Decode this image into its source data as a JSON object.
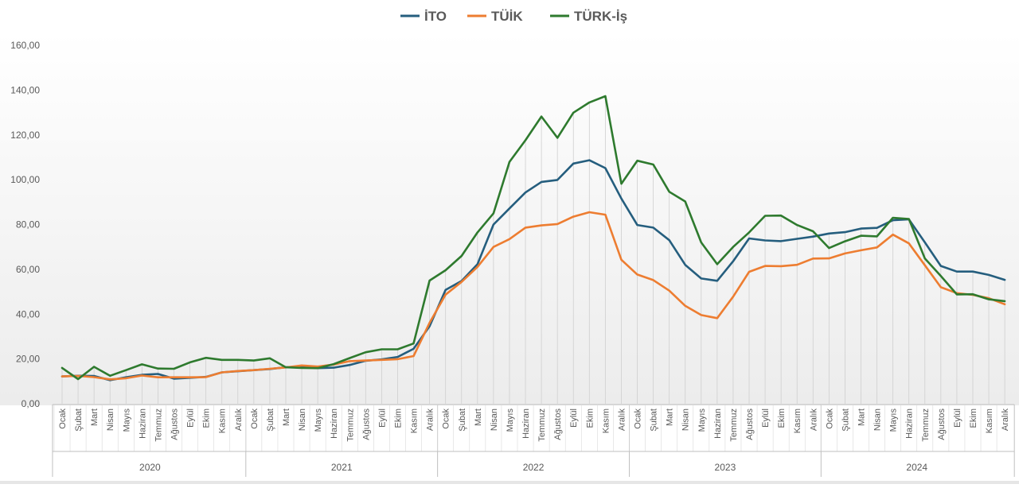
{
  "chart_data": {
    "type": "line",
    "years": [
      "2020",
      "2021",
      "2022",
      "2023",
      "2024"
    ],
    "months": [
      "Ocak",
      "Şubat",
      "Mart",
      "Nisan",
      "Mayıs",
      "Haziran",
      "Temmuz",
      "Ağustos",
      "Eylül",
      "Ekim",
      "Kasım",
      "Aralık"
    ],
    "ylim": [
      0,
      160
    ],
    "yticks": [
      "0,00",
      "20,00",
      "40,00",
      "60,00",
      "80,00",
      "100,00",
      "120,00",
      "140,00",
      "160,00"
    ],
    "ytick_values": [
      0,
      20,
      40,
      60,
      80,
      100,
      120,
      140,
      160
    ],
    "legend_position": "top-center",
    "grid": "vertical drop lines",
    "series": [
      {
        "name": "İTO",
        "color": "#255E7E",
        "values": [
          12.2,
          12.5,
          12.4,
          10.5,
          11.8,
          12.9,
          13.3,
          11.2,
          11.6,
          12.0,
          14.0,
          14.5,
          15.0,
          15.5,
          16.3,
          16.5,
          15.9,
          16.1,
          17.3,
          19.2,
          19.8,
          20.9,
          24.5,
          34.6,
          50.8,
          54.8,
          62.3,
          80.0,
          87.2,
          94.3,
          99.0,
          99.9,
          107.2,
          108.7,
          105.2,
          91.6,
          79.8,
          78.6,
          73.0,
          62.0,
          55.9,
          54.9,
          63.6,
          73.8,
          72.9,
          72.6,
          73.6,
          74.6,
          76.0,
          76.6,
          78.2,
          78.5,
          81.9,
          82.3,
          72.0,
          61.5,
          59.0,
          59.0,
          57.5,
          55.3
        ]
      },
      {
        "name": "TÜİK",
        "color": "#ED7D31",
        "values": [
          12.2,
          12.4,
          11.9,
          10.9,
          11.4,
          12.6,
          11.8,
          11.8,
          11.8,
          11.9,
          14.0,
          14.6,
          15.0,
          15.6,
          16.2,
          17.1,
          16.6,
          17.5,
          19.0,
          19.3,
          19.6,
          19.9,
          21.3,
          36.1,
          48.7,
          54.4,
          61.1,
          70.0,
          73.5,
          78.6,
          79.6,
          80.2,
          83.5,
          85.5,
          84.4,
          64.3,
          57.7,
          55.2,
          50.5,
          43.7,
          39.6,
          38.2,
          47.8,
          58.9,
          61.5,
          61.4,
          62.0,
          64.8,
          64.9,
          67.1,
          68.5,
          69.8,
          75.5,
          71.6,
          61.8,
          52.0,
          49.4,
          48.6,
          47.1,
          44.4
        ]
      },
      {
        "name": "TÜRK-İş",
        "color": "#2E7A2E",
        "values": [
          16.0,
          11.0,
          16.5,
          12.5,
          15.0,
          17.6,
          15.7,
          15.6,
          18.5,
          20.5,
          19.6,
          19.6,
          19.3,
          20.3,
          16.3,
          16.0,
          15.9,
          17.7,
          20.4,
          23.0,
          24.3,
          24.3,
          26.9,
          55.0,
          59.6,
          66.0,
          76.5,
          85.0,
          108.0,
          117.6,
          128.2,
          118.7,
          129.9,
          134.5,
          137.3,
          98.2,
          108.5,
          106.8,
          94.6,
          90.3,
          72.0,
          62.3,
          70.0,
          76.5,
          83.9,
          84.0,
          79.8,
          77.0,
          69.5,
          72.5,
          75.0,
          74.7,
          83.0,
          82.5,
          64.8,
          57.0,
          48.8,
          48.9,
          46.6,
          45.8
        ]
      }
    ]
  }
}
